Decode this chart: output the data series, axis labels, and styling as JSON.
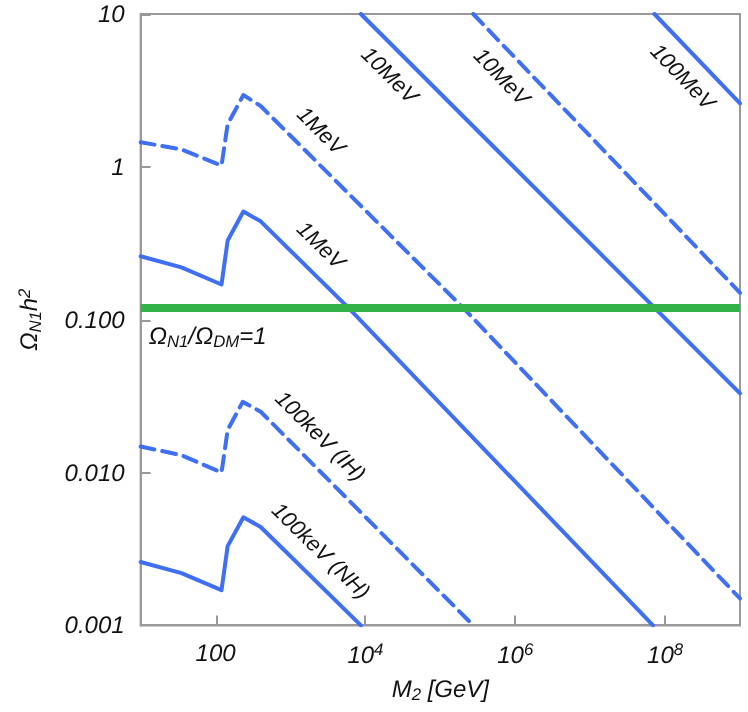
{
  "chart_data": {
    "type": "line",
    "xlabel": "M$_{2}$ [GeV]",
    "ylabel": "Ω$_{N1}$h$^{2}$",
    "log": "xy",
    "xlim": [
      10,
      1000000000
    ],
    "ylim": [
      0.001,
      10
    ],
    "xticks": [
      100,
      {
        "value": 10000,
        "label": "10$^{4}$"
      },
      {
        "value": 1000000,
        "label": "10$^{6}$"
      },
      {
        "value": 100000000,
        "label": "10$^{8}$"
      }
    ],
    "yticks": [
      {
        "value": 0.001,
        "label": "0.001"
      },
      {
        "value": 0.01,
        "label": "0.010"
      },
      {
        "value": 0.1,
        "label": "0.100"
      },
      1,
      10
    ],
    "grid": false,
    "legend": false,
    "marker": "none",
    "series": [
      {
        "name": "100keV (NH)",
        "color": "#3f6ff5",
        "line_style": "solid",
        "x": [
          10,
          35,
          120,
          145,
          235,
          400,
          8700
        ],
        "values": [
          0.0026,
          0.0022,
          0.0017,
          0.0033,
          0.0051,
          0.0044,
          0.001
        ]
      },
      {
        "name": "100keV (IH)",
        "color": "#3f6ff5",
        "line_style": "dashed",
        "x": [
          10,
          35,
          120,
          145,
          230,
          400,
          275000
        ],
        "values": [
          0.0148,
          0.013,
          0.01,
          0.019,
          0.029,
          0.025,
          0.001
        ]
      },
      {
        "name": "1MeV",
        "color": "#3f6ff5",
        "line_style": "solid",
        "x": [
          10,
          35,
          120,
          145,
          235,
          400,
          5900,
          69000000
        ],
        "values": [
          0.26,
          0.22,
          0.17,
          0.33,
          0.51,
          0.44,
          0.12,
          0.001
        ]
      },
      {
        "name": "1MeV",
        "color": "#3f6ff5",
        "line_style": "dashed",
        "x": [
          10,
          35,
          120,
          145,
          235,
          400,
          200000,
          1000000000
        ],
        "values": [
          1.45,
          1.3,
          1.02,
          1.9,
          2.95,
          2.5,
          0.12,
          0.0015
        ]
      },
      {
        "name": "10MeV",
        "color": "#3f6ff5",
        "line_style": "solid",
        "x": [
          8700,
          1000000000
        ],
        "values": [
          10,
          0.033
        ]
      },
      {
        "name": "10MeV",
        "color": "#3f6ff5",
        "line_style": "dashed",
        "x": [
          275000,
          1000000000
        ],
        "values": [
          10,
          0.15
        ]
      },
      {
        "name": "100MeV",
        "color": "#3f6ff5",
        "line_style": "solid",
        "x": [
          72000000,
          1000000000
        ],
        "values": [
          10,
          2.6
        ]
      }
    ],
    "ref_lines": [
      {
        "axis": "y",
        "value": 0.12,
        "color": "#33b24a"
      }
    ],
    "annotations": [
      "Ω$_{N1}$/Ω$_{DM}$=1"
    ]
  }
}
